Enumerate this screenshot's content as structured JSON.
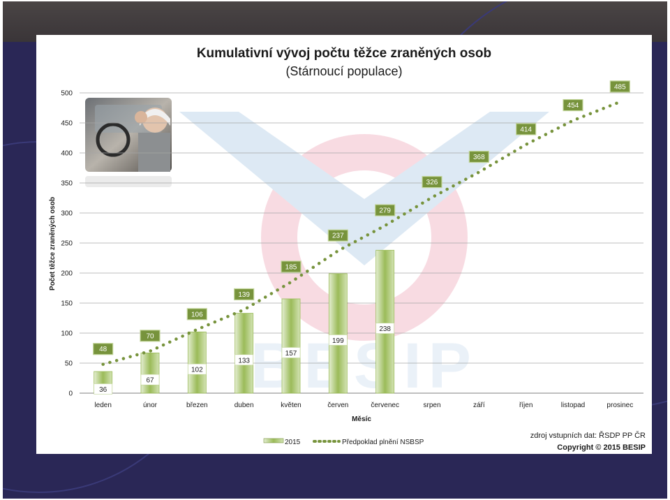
{
  "chart_data": {
    "type": "bar",
    "title": "Kumulativní vývoj počtu těžce zraněných osob",
    "subtitle": "(Stárnoucí populace)",
    "xlabel": "Měsíc",
    "ylabel": "Počet těžce zraněných osob",
    "ylim": [
      0,
      500
    ],
    "yticks": [
      0,
      50,
      100,
      150,
      200,
      250,
      300,
      350,
      400,
      450,
      500
    ],
    "grid": true,
    "legend": "bottom",
    "categories": [
      "leden",
      "únor",
      "březen",
      "duben",
      "květen",
      "červen",
      "červenec",
      "srpen",
      "září",
      "říjen",
      "listopad",
      "prosinec"
    ],
    "series": [
      {
        "name": "2015",
        "type": "bar",
        "values": [
          36,
          67,
          102,
          133,
          157,
          199,
          238,
          null,
          null,
          null,
          null,
          null
        ]
      },
      {
        "name": "Předpoklad plnění NSBSP",
        "type": "line",
        "style": "dotted",
        "values": [
          48,
          70,
          106,
          139,
          185,
          237,
          279,
          326,
          368,
          414,
          454,
          485
        ]
      }
    ],
    "colors": {
      "bar": "#9bbb59",
      "bar_light": "#e4eed2",
      "line": "#77933c",
      "label_box": "#77933c"
    }
  },
  "source_note": "zdroj vstupních dat: ŘSDP PP ČR",
  "copyright": "Copyright © 2015 BESIP",
  "watermark": "BESIP",
  "photo": {
    "name": "elderly-driver-photo"
  }
}
